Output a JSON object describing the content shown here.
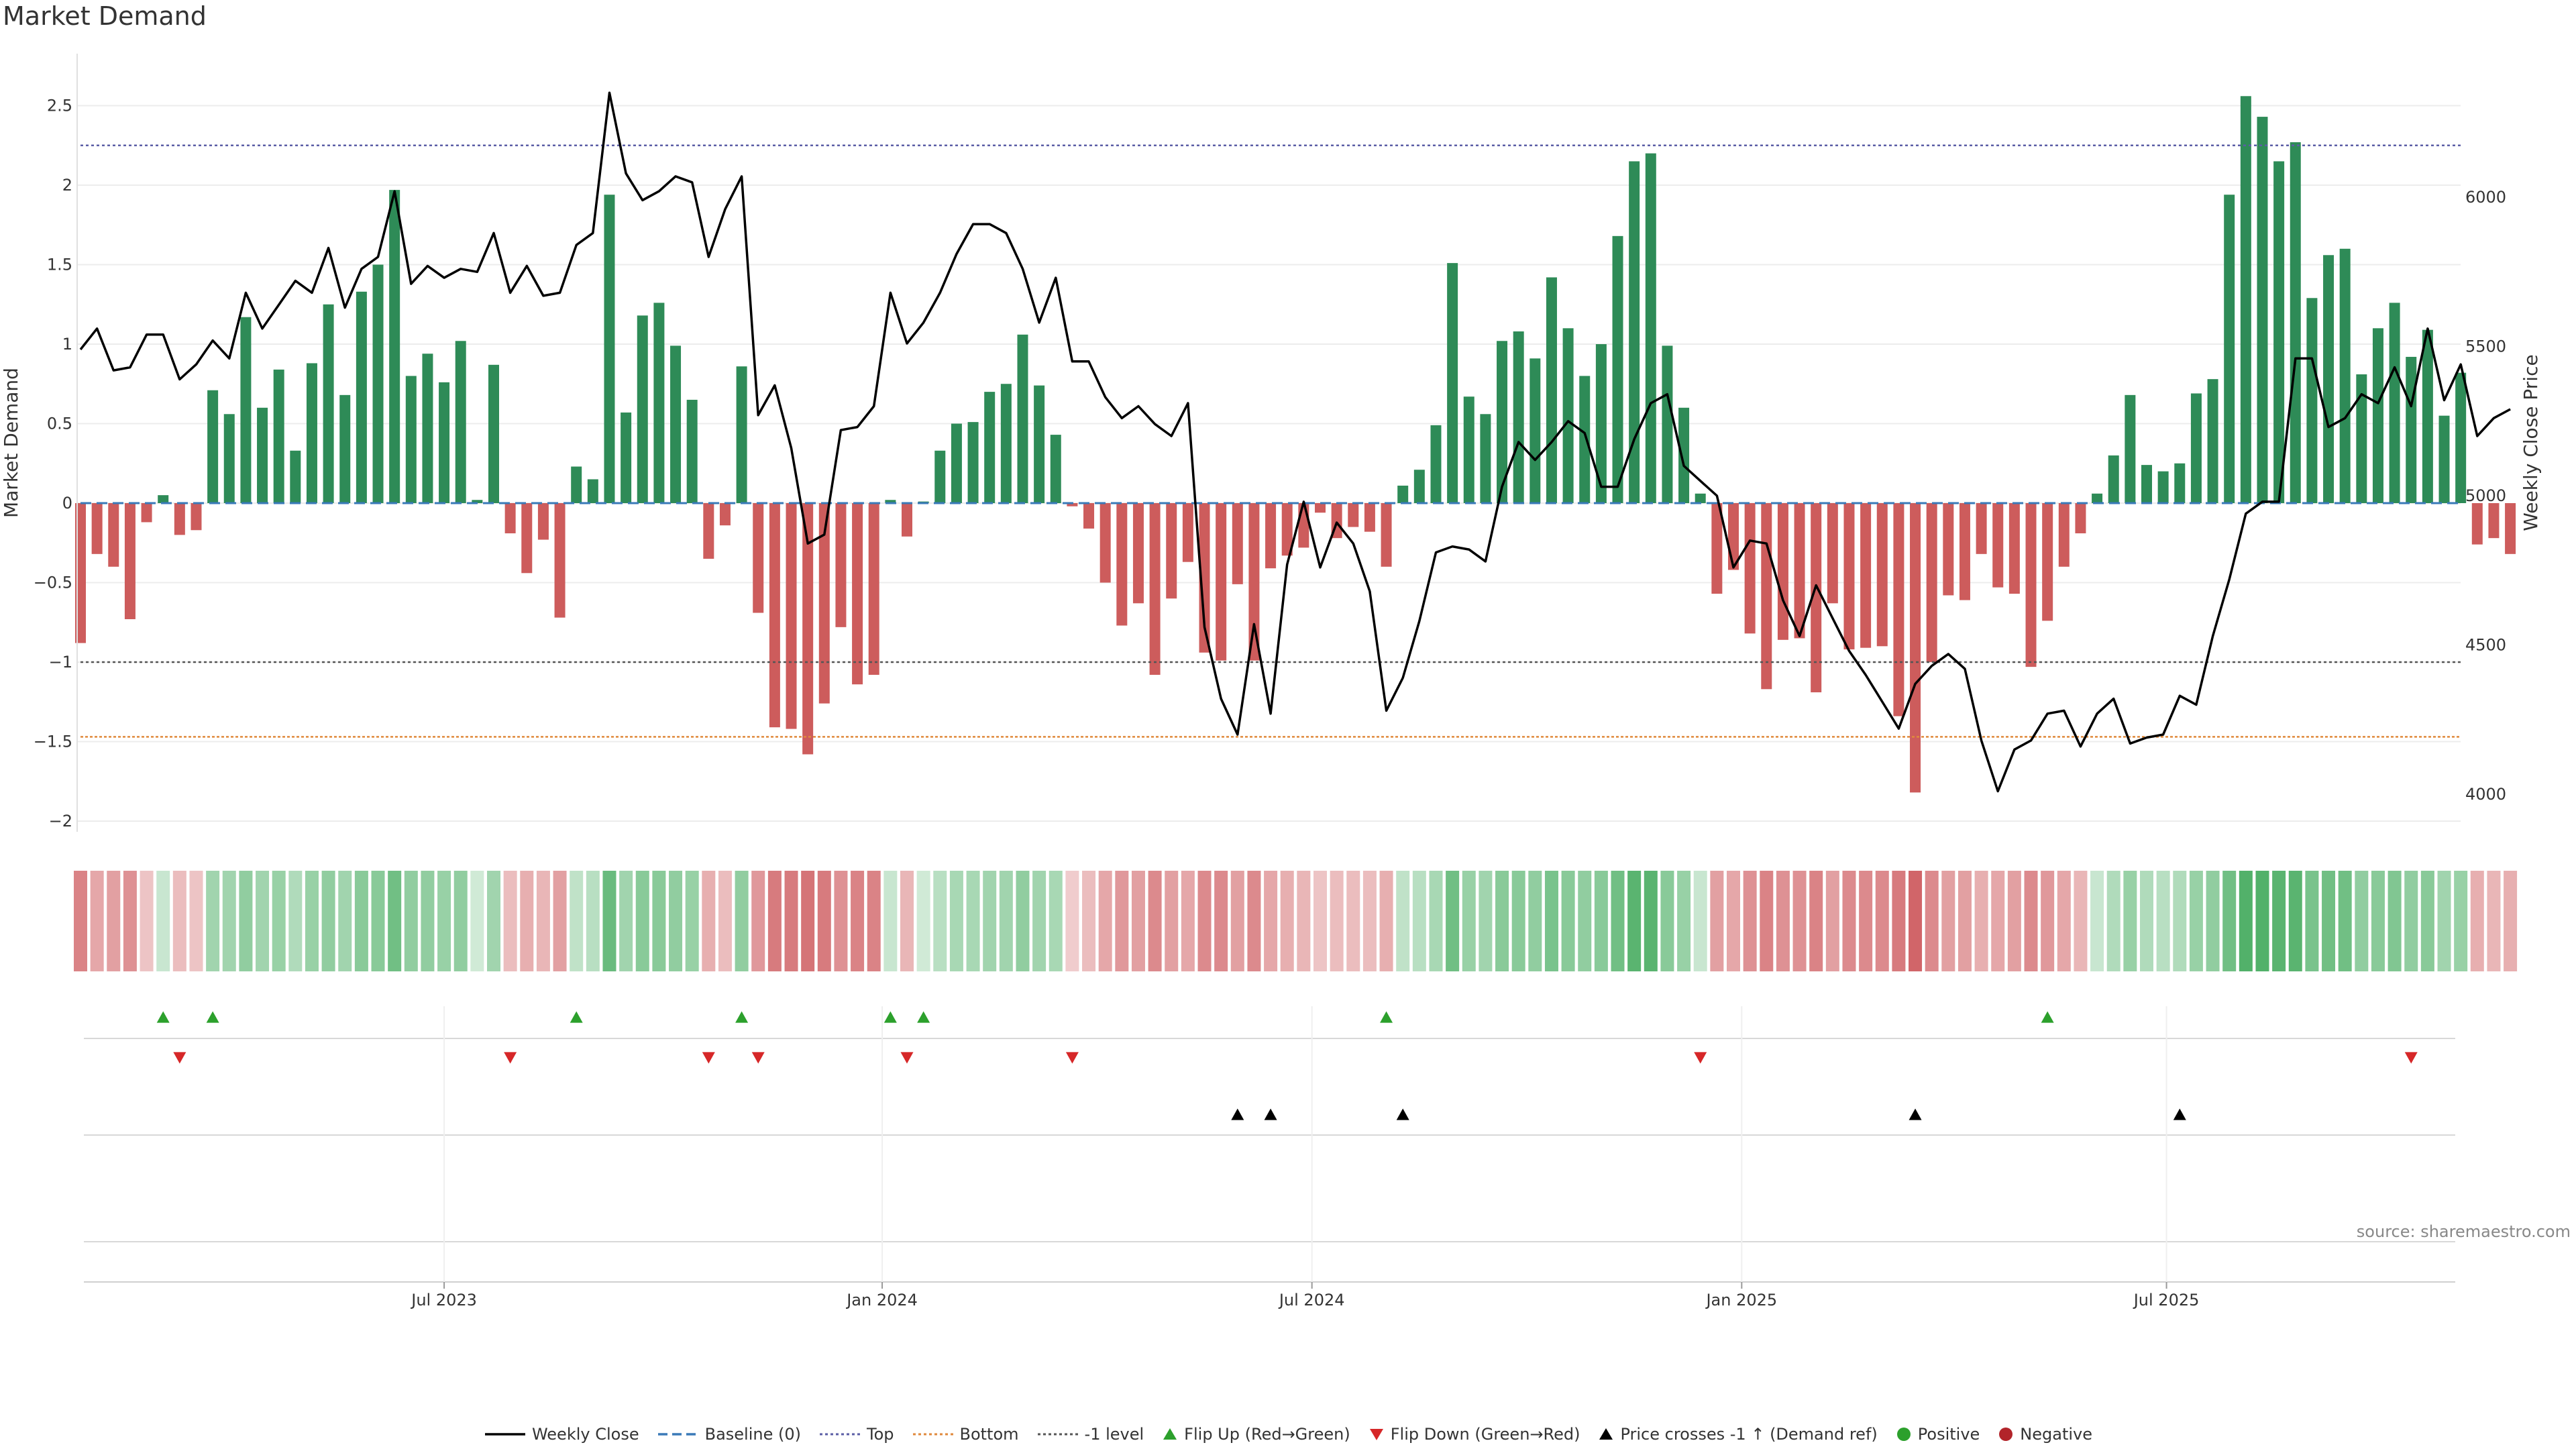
{
  "chart_data": {
    "type": "bar",
    "title": "Market Demand",
    "ylabel": "Market Demand",
    "y2label": "Weekly Close Price",
    "ylim": [
      -2.2,
      2.8
    ],
    "y2lim": [
      3800,
      6450
    ],
    "yticks": [
      "2.5",
      "2",
      "1.5",
      "1",
      "0.5",
      "0",
      "−0.5",
      "−1",
      "−1.5",
      "−2"
    ],
    "ytick_values": [
      2.5,
      2,
      1.5,
      1,
      0.5,
      0,
      -0.5,
      -1,
      -1.5,
      -2
    ],
    "y2ticks": [
      "6000",
      "5500",
      "5000",
      "4500",
      "4000"
    ],
    "y2tick_values": [
      6000,
      5500,
      5000,
      4500,
      4000
    ],
    "x_ticks": [
      {
        "label": "Jul 2023",
        "week": 22
      },
      {
        "label": "Jan 2024",
        "week": 48.5
      },
      {
        "label": "Jul 2024",
        "week": 74.5
      },
      {
        "label": "Jan 2025",
        "week": 100.5
      },
      {
        "label": "Jul 2025",
        "week": 126.2
      }
    ],
    "reference_lines": [
      {
        "name": "Top",
        "value": 2.25,
        "color": "#5b5ea6",
        "dash": "4,4"
      },
      {
        "name": "-1 level",
        "value": -1,
        "color": "#555555",
        "dash": "4,4"
      },
      {
        "name": "Bottom",
        "value": -1.47,
        "color": "#e08a3c",
        "dash": "4,3"
      }
    ],
    "series": [
      {
        "name": "Market Demand",
        "values": [
          -0.88,
          -0.32,
          -0.4,
          -0.73,
          -0.12,
          0.05,
          -0.2,
          -0.17,
          0.71,
          0.56,
          1.17,
          0.6,
          0.84,
          0.33,
          0.88,
          1.25,
          0.68,
          1.33,
          1.5,
          1.97,
          0.8,
          0.94,
          0.76,
          1.02,
          0.02,
          0.87,
          -0.19,
          -0.44,
          -0.23,
          -0.72,
          0.23,
          0.15,
          1.94,
          0.57,
          1.18,
          1.26,
          0.99,
          0.65,
          -0.35,
          -0.14,
          0.86,
          -0.69,
          -1.41,
          -1.42,
          -1.58,
          -1.26,
          -0.78,
          -1.14,
          -1.08,
          0.02,
          -0.21,
          0.01,
          0.33,
          0.5,
          0.51,
          0.7,
          0.75,
          1.06,
          0.74,
          0.43,
          -0.02,
          -0.16,
          -0.5,
          -0.77,
          -0.63,
          -1.08,
          -0.6,
          -0.37,
          -0.94,
          -0.99,
          -0.51,
          -0.99,
          -0.41,
          -0.33,
          -0.28,
          -0.06,
          -0.22,
          -0.15,
          -0.18,
          -0.4,
          0.11,
          0.21,
          0.49,
          1.51,
          0.67,
          0.56,
          1.02,
          1.08,
          0.91,
          1.42,
          1.1,
          0.8,
          1.0,
          1.68,
          2.15,
          2.2,
          0.99,
          0.6,
          0.06,
          -0.57,
          -0.42,
          -0.82,
          -1.17,
          -0.86,
          -0.85,
          -1.19,
          -0.63,
          -0.92,
          -0.91,
          -0.9,
          -1.34,
          -1.82,
          -1.0,
          -0.58,
          -0.61,
          -0.32,
          -0.53,
          -0.57,
          -1.03,
          -0.74,
          -0.4,
          -0.19,
          0.06,
          0.3,
          0.68,
          0.24,
          0.2,
          0.25,
          0.69,
          0.78,
          1.94,
          2.56,
          2.43,
          2.15,
          2.27,
          1.29,
          1.56,
          1.6,
          0.81,
          1.1,
          1.26,
          0.92,
          1.09,
          0.55,
          0.82,
          -0.26,
          -0.22,
          -0.32
        ]
      },
      {
        "name": "Weekly Close",
        "values": [
          5490,
          5560,
          5420,
          5430,
          5540,
          5540,
          5390,
          5440,
          5520,
          5460,
          5680,
          5560,
          5640,
          5720,
          5680,
          5830,
          5630,
          5760,
          5800,
          6020,
          5710,
          5770,
          5730,
          5760,
          5750,
          5880,
          5680,
          5770,
          5670,
          5680,
          5840,
          5880,
          6350,
          6080,
          5990,
          6020,
          6070,
          6050,
          5800,
          5960,
          6070,
          5270,
          5370,
          5160,
          4840,
          4870,
          5220,
          5230,
          5300,
          5680,
          5510,
          5580,
          5680,
          5810,
          5910,
          5910,
          5880,
          5760,
          5580,
          5730,
          5450,
          5450,
          5330,
          5260,
          5300,
          5240,
          5200,
          5310,
          4560,
          4320,
          4200,
          4570,
          4270,
          4770,
          4980,
          4760,
          4910,
          4840,
          4680,
          4280,
          4390,
          4580,
          4810,
          4830,
          4820,
          4780,
          5030,
          5180,
          5120,
          5180,
          5250,
          5210,
          5030,
          5030,
          5190,
          5310,
          5340,
          5100,
          5050,
          5000,
          4760,
          4850,
          4840,
          4650,
          4530,
          4700,
          4590,
          4480,
          4400,
          4310,
          4220,
          4370,
          4430,
          4470,
          4420,
          4180,
          4010,
          4150,
          4180,
          4270,
          4280,
          4160,
          4270,
          4320,
          4170,
          4190,
          4200,
          4330,
          4300,
          4530,
          4720,
          4940,
          4980,
          4980,
          5460,
          5460,
          5230,
          5260,
          5340,
          5310,
          5430,
          5300,
          5560,
          5320,
          5440,
          5200,
          5260,
          5290
        ]
      }
    ],
    "demand_strip_levels": [
      0.7,
      0.45,
      0.5,
      0.6,
      0.25,
      0.2,
      0.3,
      0.25,
      0.45,
      0.45,
      0.55,
      0.45,
      0.5,
      0.35,
      0.5,
      0.55,
      0.45,
      0.6,
      0.6,
      0.75,
      0.55,
      0.55,
      0.5,
      0.55,
      0.15,
      0.45,
      0.3,
      0.4,
      0.35,
      0.5,
      0.25,
      0.3,
      0.8,
      0.45,
      0.6,
      0.6,
      0.55,
      0.5,
      0.4,
      0.3,
      0.55,
      0.55,
      0.75,
      0.75,
      0.8,
      0.75,
      0.6,
      0.7,
      0.7,
      0.2,
      0.35,
      0.15,
      0.3,
      0.4,
      0.4,
      0.45,
      0.45,
      0.55,
      0.45,
      0.4,
      0.2,
      0.3,
      0.45,
      0.55,
      0.5,
      0.65,
      0.5,
      0.45,
      0.65,
      0.65,
      0.5,
      0.65,
      0.45,
      0.4,
      0.35,
      0.25,
      0.3,
      0.3,
      0.3,
      0.4,
      0.25,
      0.3,
      0.4,
      0.75,
      0.5,
      0.45,
      0.6,
      0.6,
      0.55,
      0.7,
      0.6,
      0.55,
      0.6,
      0.75,
      0.9,
      0.9,
      0.6,
      0.5,
      0.2,
      0.5,
      0.45,
      0.6,
      0.7,
      0.6,
      0.6,
      0.7,
      0.5,
      0.65,
      0.65,
      0.65,
      0.75,
      0.9,
      0.65,
      0.5,
      0.5,
      0.4,
      0.45,
      0.5,
      0.65,
      0.55,
      0.45,
      0.35,
      0.2,
      0.35,
      0.5,
      0.35,
      0.3,
      0.35,
      0.5,
      0.55,
      0.75,
      0.95,
      0.95,
      0.9,
      0.9,
      0.7,
      0.75,
      0.75,
      0.55,
      0.6,
      0.65,
      0.55,
      0.6,
      0.45,
      0.5,
      0.4,
      0.35,
      0.4
    ],
    "flip_up_weeks": [
      5,
      8,
      30,
      40,
      49,
      51,
      79,
      119
    ],
    "flip_down_weeks": [
      6,
      26,
      38,
      41,
      50,
      60,
      98,
      141
    ],
    "price_cross_weeks": [
      70,
      72,
      80,
      111,
      127
    ],
    "legend": [
      {
        "label": "Weekly Close",
        "kind": "line",
        "color": "#000000"
      },
      {
        "label": "Baseline (0)",
        "kind": "dash",
        "color": "#3a7ab8"
      },
      {
        "label": "Top",
        "kind": "dot",
        "color": "#5b5ea6"
      },
      {
        "label": "Bottom",
        "kind": "dot",
        "color": "#e08a3c"
      },
      {
        "label": "-1 level",
        "kind": "dot",
        "color": "#555555"
      },
      {
        "label": "Flip Up (Red→Green)",
        "kind": "tri-up",
        "color": "#2ca02c"
      },
      {
        "label": "Flip Down (Green→Red)",
        "kind": "tri-down",
        "color": "#d62728"
      },
      {
        "label": "Price crosses -1 ↑ (Demand ref)",
        "kind": "tri-up",
        "color": "#000000"
      },
      {
        "label": "Positive",
        "kind": "circle",
        "color": "#2ca02c"
      },
      {
        "label": "Negative",
        "kind": "circle",
        "color": "#b2242a"
      }
    ],
    "colors": {
      "positive_bar": "#2e8b57",
      "negative_bar": "#cd5c5c",
      "strip_green": "#3aa655",
      "strip_red": "#c8484c"
    }
  },
  "source": "source: sharemaestro.com"
}
